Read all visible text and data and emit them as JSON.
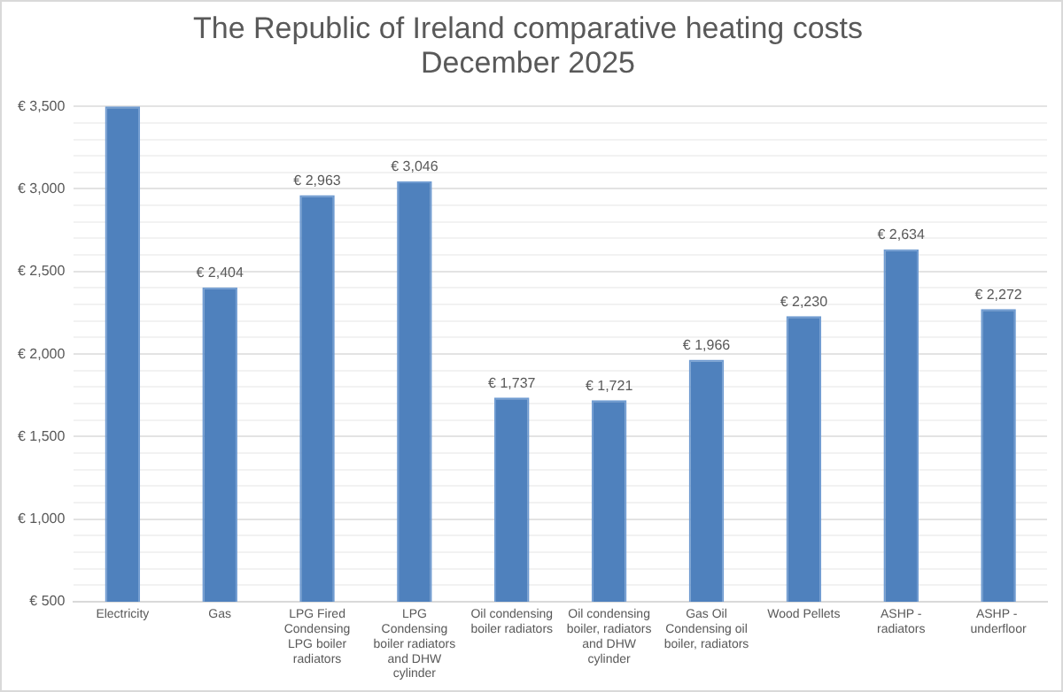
{
  "chart_data": {
    "type": "bar",
    "title": "The Republic of Ireland comparative heating costs\nDecember 2025",
    "categories": [
      "Electricity",
      "Gas",
      "LPG Fired Condensing LPG boiler radiators",
      "LPG Condensing boiler radiators and DHW cylinder",
      "Oil condensing boiler radiators",
      "Oil condensing boiler, radiators and DHW cylinder",
      "Gas Oil Condensing oil boiler, radiators",
      "Wood Pellets",
      "ASHP - radiators",
      "ASHP -  underfloor"
    ],
    "values": [
      3500,
      2404,
      2963,
      3046,
      1737,
      1721,
      1966,
      2230,
      2634,
      2272
    ],
    "value_labels": [
      null,
      "€ 2,404",
      "€ 2,963",
      "€ 3,046",
      "€ 1,737",
      "€ 1,721",
      "€ 1,966",
      "€ 2,230",
      "€ 2,634",
      "€ 2,272"
    ],
    "color": "#4f81bd",
    "ylim": [
      500,
      3500
    ],
    "yticks": [
      {
        "value": 500,
        "label": "€ 500"
      },
      {
        "value": 600,
        "label": null
      },
      {
        "value": 700,
        "label": null
      },
      {
        "value": 800,
        "label": null
      },
      {
        "value": 900,
        "label": null
      },
      {
        "value": 1000,
        "label": "€ 1,000"
      },
      {
        "value": 1100,
        "label": null
      },
      {
        "value": 1200,
        "label": null
      },
      {
        "value": 1300,
        "label": null
      },
      {
        "value": 1400,
        "label": null
      },
      {
        "value": 1500,
        "label": "€ 1,500"
      },
      {
        "value": 1600,
        "label": null
      },
      {
        "value": 1700,
        "label": null
      },
      {
        "value": 1800,
        "label": null
      },
      {
        "value": 1900,
        "label": null
      },
      {
        "value": 2000,
        "label": "€ 2,000"
      },
      {
        "value": 2100,
        "label": null
      },
      {
        "value": 2200,
        "label": null
      },
      {
        "value": 2300,
        "label": null
      },
      {
        "value": 2400,
        "label": null
      },
      {
        "value": 2500,
        "label": "€ 2,500"
      },
      {
        "value": 2600,
        "label": null
      },
      {
        "value": 2700,
        "label": null
      },
      {
        "value": 2800,
        "label": null
      },
      {
        "value": 2900,
        "label": null
      },
      {
        "value": 3000,
        "label": "€ 3,000"
      },
      {
        "value": 3100,
        "label": null
      },
      {
        "value": 3200,
        "label": null
      },
      {
        "value": 3300,
        "label": null
      },
      {
        "value": 3400,
        "label": null
      },
      {
        "value": 3500,
        "label": "€ 3,500"
      }
    ],
    "grid": "y"
  }
}
